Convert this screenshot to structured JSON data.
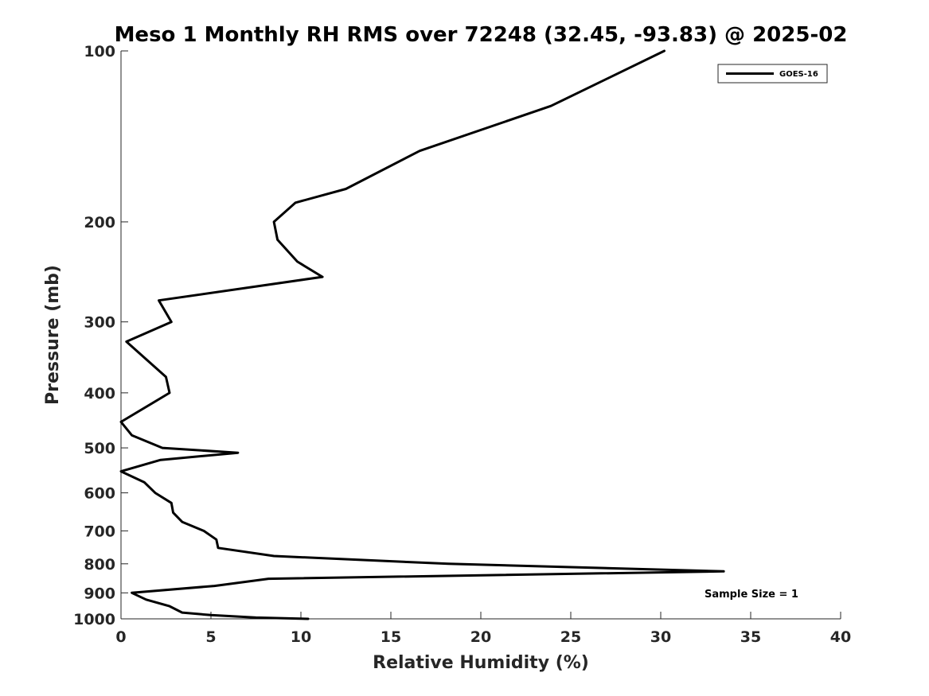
{
  "chart_data": {
    "type": "line",
    "title": "Meso 1 Monthly RH RMS over 72248 (32.45, -93.83) @ 2025-02",
    "xlabel": "Relative Humidity (%)",
    "ylabel": "Pressure (mb)",
    "xlim": [
      0,
      40
    ],
    "ylim": [
      100,
      1000
    ],
    "y_scale": "log",
    "y_reversed": true,
    "x_ticks": [
      "0",
      "5",
      "10",
      "15",
      "20",
      "25",
      "30",
      "35",
      "40"
    ],
    "y_ticks": [
      "100",
      "200",
      "300",
      "400",
      "500",
      "600",
      "700",
      "800",
      "900",
      "1000"
    ],
    "grid": false,
    "legend_position": "top-right",
    "series": [
      {
        "name": "GOES-16",
        "color": "#000000",
        "points": [
          {
            "rh": 30.2,
            "p": 100
          },
          {
            "rh": 23.9,
            "p": 125
          },
          {
            "rh": 16.6,
            "p": 150
          },
          {
            "rh": 12.5,
            "p": 175
          },
          {
            "rh": 9.7,
            "p": 185
          },
          {
            "rh": 8.5,
            "p": 200
          },
          {
            "rh": 8.7,
            "p": 215
          },
          {
            "rh": 9.8,
            "p": 235
          },
          {
            "rh": 11.2,
            "p": 250
          },
          {
            "rh": 2.1,
            "p": 275
          },
          {
            "rh": 2.8,
            "p": 300
          },
          {
            "rh": 0.3,
            "p": 325
          },
          {
            "rh": 2.5,
            "p": 375
          },
          {
            "rh": 2.7,
            "p": 400
          },
          {
            "rh": 0.0,
            "p": 450
          },
          {
            "rh": 0.6,
            "p": 475
          },
          {
            "rh": 2.3,
            "p": 500
          },
          {
            "rh": 6.5,
            "p": 510
          },
          {
            "rh": 2.2,
            "p": 525
          },
          {
            "rh": 0.0,
            "p": 550
          },
          {
            "rh": 1.3,
            "p": 575
          },
          {
            "rh": 1.9,
            "p": 600
          },
          {
            "rh": 2.8,
            "p": 625
          },
          {
            "rh": 2.9,
            "p": 650
          },
          {
            "rh": 3.4,
            "p": 675
          },
          {
            "rh": 4.6,
            "p": 700
          },
          {
            "rh": 5.3,
            "p": 725
          },
          {
            "rh": 5.4,
            "p": 750
          },
          {
            "rh": 8.5,
            "p": 775
          },
          {
            "rh": 18.2,
            "p": 800
          },
          {
            "rh": 33.5,
            "p": 825
          },
          {
            "rh": 8.2,
            "p": 850
          },
          {
            "rh": 5.2,
            "p": 875
          },
          {
            "rh": 0.6,
            "p": 900
          },
          {
            "rh": 1.4,
            "p": 925
          },
          {
            "rh": 2.7,
            "p": 950
          },
          {
            "rh": 3.4,
            "p": 975
          },
          {
            "rh": 5.0,
            "p": 985
          },
          {
            "rh": 7.5,
            "p": 995
          },
          {
            "rh": 10.4,
            "p": 1000
          }
        ]
      }
    ],
    "annotation": "Sample Size = 1"
  }
}
